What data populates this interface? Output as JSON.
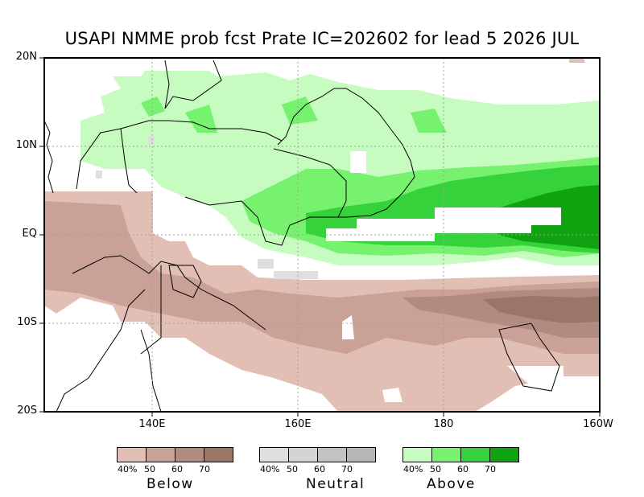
{
  "title": "USAPI NMME prob fcst Prate IC=202602 for lead 5 2026 JUL",
  "map": {
    "lon_range": [
      "125E",
      "160W"
    ],
    "lat_range": [
      "20S",
      "20N"
    ],
    "y_ticks": [
      "20N",
      "10N",
      "EQ",
      "10S",
      "20S"
    ],
    "x_ticks": [
      "140E",
      "160E",
      "180",
      "160W"
    ],
    "frame_color": "#000000",
    "grid_color": "#a0a0a0"
  },
  "legend": {
    "groups": [
      {
        "name": "Below",
        "colors": [
          "#e1bfb5",
          "#c9a196",
          "#b28a7f",
          "#9c7569"
        ],
        "ticks": [
          "40%",
          "50",
          "60",
          "70"
        ]
      },
      {
        "name": "Neutral",
        "colors": [
          "#dfdfdf",
          "#d4d4d4",
          "#c2c2c2",
          "#b6b6b6"
        ],
        "ticks": [
          "40%",
          "50",
          "60",
          "70"
        ]
      },
      {
        "name": "Above",
        "colors": [
          "#c6fcc0",
          "#76f26f",
          "#36d23b",
          "#0fa40f"
        ],
        "ticks": [
          "40%",
          "50",
          "60",
          "70"
        ]
      }
    ]
  }
}
